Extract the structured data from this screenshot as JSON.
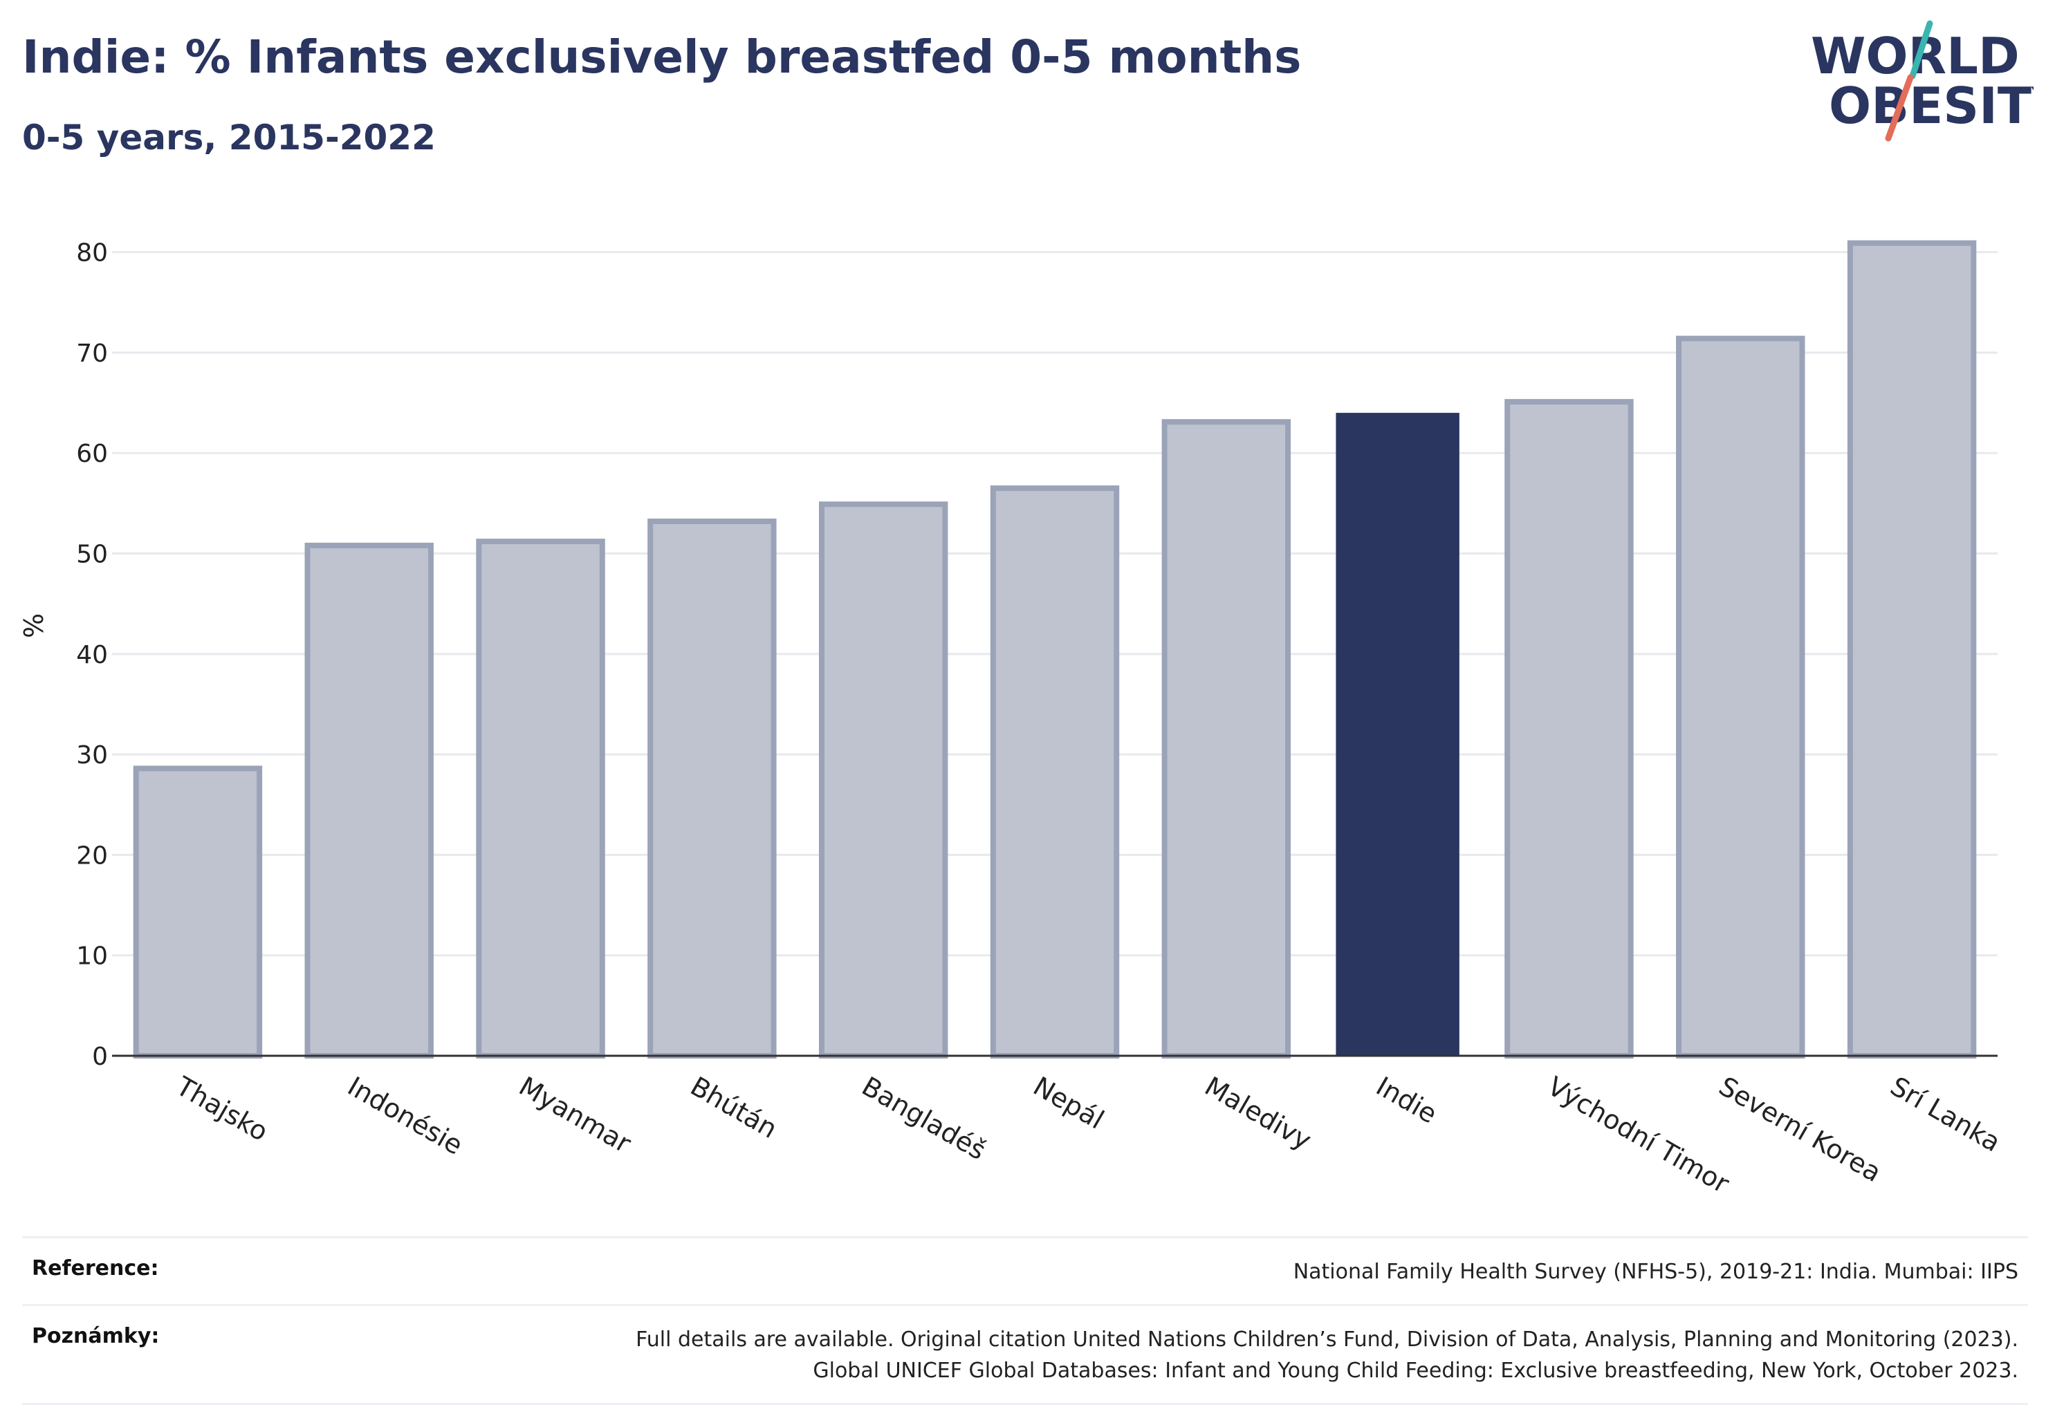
{
  "header": {
    "title": "Indie: % Infants exclusively breastfed 0-5 months",
    "subtitle": "0-5 years, 2015-2022"
  },
  "logo": {
    "line1": "WORLD",
    "line2": "OBESITY"
  },
  "chart_data": {
    "type": "bar",
    "title": "Indie: % Infants exclusively breastfed 0-5 months",
    "subtitle": "0-5 years, 2015-2022",
    "xlabel": "",
    "ylabel": "%",
    "ylim": [
      0,
      85
    ],
    "yticks": [
      0,
      10,
      20,
      30,
      40,
      50,
      60,
      70,
      80
    ],
    "grid": true,
    "categories": [
      "Thajsko",
      "Indonésie",
      "Myanmar",
      "Bhútán",
      "Bangladéš",
      "Nepál",
      "Maledivy",
      "Indie",
      "Východní Timor",
      "Severní Korea",
      "Srí Lanka"
    ],
    "values": [
      28.6,
      50.8,
      51.2,
      53.2,
      54.9,
      56.5,
      63.1,
      64.0,
      65.1,
      71.4,
      80.9
    ],
    "highlight": "Indie",
    "colors": {
      "bar": "#bfc3d0",
      "bar_edge": "#9ba3b8",
      "highlight": "#2a3560",
      "axis": "#333333",
      "grid": "#e8e9ee"
    }
  },
  "footer": {
    "reference_label": "Reference:",
    "reference_text": "National Family Health Survey (NFHS-5), 2019-21: India. Mumbai: IIPS",
    "notes_label": "Poznámky:",
    "notes_line1": "Full details are available. Original citation United Nations Children’s Fund, Division of Data, Analysis, Planning and Monitoring (2023).",
    "notes_line2": "Global UNICEF Global Databases: Infant and Young Child Feeding: Exclusive breastfeeding, New York, October 2023."
  }
}
